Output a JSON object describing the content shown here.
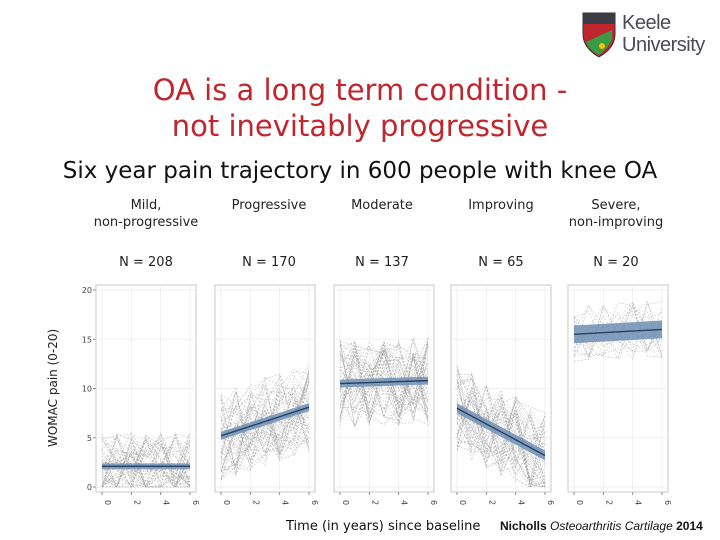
{
  "slide": {
    "title_line1": "OA is a long term condition -",
    "title_line2": "not inevitably progressive",
    "subtitle": "Six year pain trajectory in 600 people with knee OA",
    "logo_text_line1": "Keele",
    "logo_text_line2": "University",
    "citation_author": "Nicholls",
    "citation_journal": "Osteoarthritis Cartilage",
    "citation_year": "2014"
  },
  "colors": {
    "title": "#c0262d",
    "trend_line": "#2a3f5f",
    "confidence_band": "#6f8fb5",
    "individual_lines": "#9a9a9a"
  },
  "chart_data": {
    "type": "line",
    "ylabel": "WOMAC pain (0-20)",
    "xlabel": "Time (in years) since baseline",
    "x_ticks": [
      0,
      2,
      4,
      6
    ],
    "y_ticks": [
      0,
      5,
      10,
      15,
      20
    ],
    "ylim": [
      0,
      20
    ],
    "xlim": [
      0,
      6
    ],
    "grid": true,
    "panels": [
      {
        "name_line1": "Mild,",
        "name_line2": "non-progressive",
        "n_label": "N = 208",
        "trend_start": 2.1,
        "trend_end": 2.1,
        "band": 0.3
      },
      {
        "name_line1": "Progressive",
        "name_line2": "",
        "n_label": "N = 170",
        "trend_start": 5.2,
        "trend_end": 8.1,
        "band": 0.4
      },
      {
        "name_line1": "Moderate",
        "name_line2": "",
        "n_label": "N = 137",
        "trend_start": 10.5,
        "trend_end": 10.8,
        "band": 0.4
      },
      {
        "name_line1": "Improving",
        "name_line2": "",
        "n_label": "N = 65",
        "trend_start": 8.0,
        "trend_end": 3.2,
        "band": 0.5
      },
      {
        "name_line1": "Severe,",
        "name_line2": "non-improving",
        "n_label": "N = 20",
        "trend_start": 15.5,
        "trend_end": 16.0,
        "band": 0.9
      }
    ]
  }
}
